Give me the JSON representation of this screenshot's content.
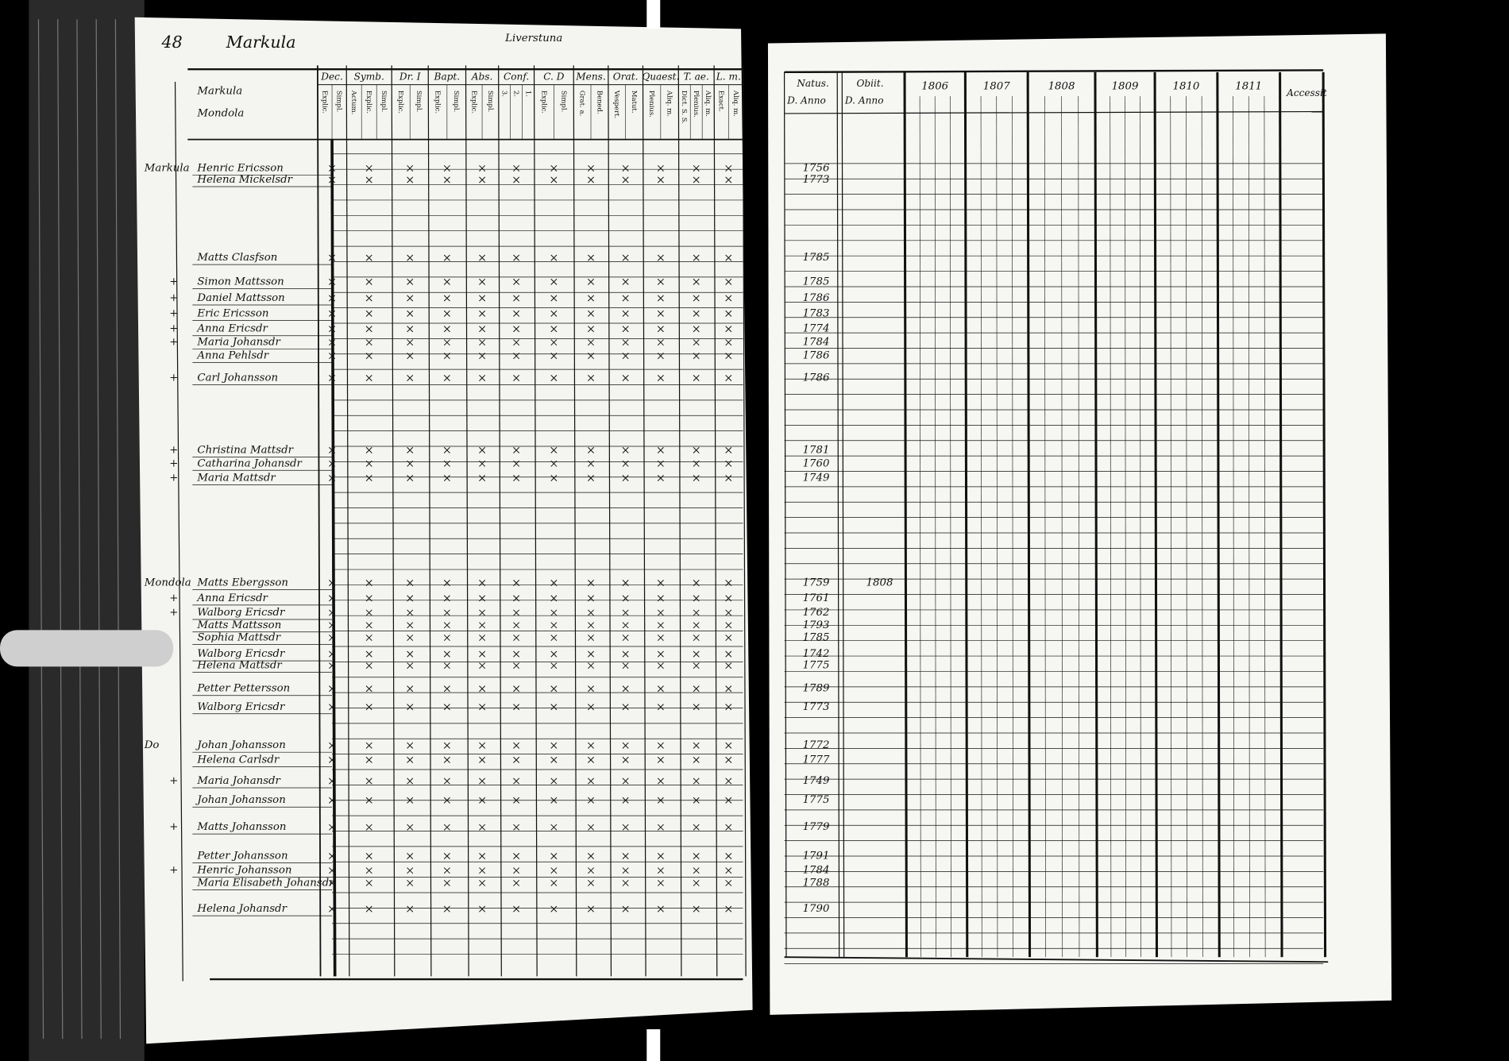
{
  "left_page": {
    "page_number": "48",
    "village": "Markula",
    "parish": "Liverstuna",
    "column_headers": [
      {
        "title": "Dec.",
        "sub": [
          "Explic.",
          "Simpl."
        ]
      },
      {
        "title": "Symb.",
        "sub": [
          "Actum.",
          "Explic.",
          "Simpl."
        ]
      },
      {
        "title": "Dr. I",
        "sub": [
          "Explic.",
          "Simpl."
        ]
      },
      {
        "title": "Bapt.",
        "sub": [
          "Explic.",
          "Simpl."
        ]
      },
      {
        "title": "Abs.",
        "sub": [
          "Explic.",
          "Simpl."
        ]
      },
      {
        "title": "Conf.",
        "sub": [
          "3.",
          "2.",
          "1."
        ]
      },
      {
        "title": "C. D",
        "sub": [
          "Explic.",
          "Simpl."
        ]
      },
      {
        "title": "Mens.",
        "sub": [
          "Grat. a.",
          "Bened."
        ]
      },
      {
        "title": "Orat.",
        "sub": [
          "Vespert.",
          "Matut."
        ]
      },
      {
        "title": "Quaest.",
        "sub": [
          "Plenius.",
          "Aliq. m."
        ]
      },
      {
        "title": "T. ae.",
        "sub": [
          "Dict. S. S.",
          "Plenius.",
          "Aliq. m."
        ]
      },
      {
        "title": "L. m.",
        "sub": [
          "Exact.",
          "Aliq. m."
        ]
      }
    ],
    "row_header": [
      "Markula",
      "Mondola"
    ]
  },
  "right_page": {
    "natus": "Natus.",
    "natus_sub": "D. Anno",
    "obiit": "Obiit.",
    "obiit_sub": "D. Anno",
    "years": [
      "1806",
      "1807",
      "1808",
      "1809",
      "1810",
      "1811"
    ],
    "accessit": "Accessit"
  },
  "rows": [
    {
      "margin": "Markula",
      "name": "Henric Ericsson",
      "born": "1756"
    },
    {
      "name": "Helena Mickelsdr",
      "born": "1773"
    },
    {
      "name": "Matts Clasfson",
      "born": "1785"
    },
    {
      "mark": "+",
      "name": "Simon Mattsson",
      "born": "1785"
    },
    {
      "mark": "+",
      "name": "Daniel Mattsson",
      "born": "1786"
    },
    {
      "mark": "+",
      "name": "Eric Ericsson",
      "born": "1783"
    },
    {
      "mark": "+",
      "name": "Anna Ericsdr",
      "born": "1774"
    },
    {
      "mark": "+",
      "name": "Maria Johansdr",
      "born": "1784"
    },
    {
      "name": "Anna Pehlsdr",
      "born": "1786"
    },
    {
      "mark": "+",
      "name": "Carl Johansson",
      "born": "1786"
    },
    {
      "mark": "+",
      "name": "Christina Mattsdr",
      "born": "1781"
    },
    {
      "mark": "+",
      "name": "Catharina Johansdr",
      "born": "1760"
    },
    {
      "mark": "+",
      "name": "Maria Mattsdr",
      "born": "1749"
    },
    {
      "margin": "Mondola",
      "name": "Matts Ebergsson",
      "born": "1759",
      "died": "1808"
    },
    {
      "mark": "+",
      "name": "Anna Ericsdr",
      "born": "1761"
    },
    {
      "mark": "+",
      "name": "Walborg Ericsdr",
      "born": "1762"
    },
    {
      "name": "Matts Mattsson",
      "born": "1793"
    },
    {
      "name": "Sophia Mattsdr",
      "born": "1785"
    },
    {
      "name": "Walborg Ericsdr",
      "born": "1742"
    },
    {
      "name": "Helena Mattsdr",
      "born": "1775"
    },
    {
      "name": "Petter Pettersson",
      "born": "1789"
    },
    {
      "name": "Walborg Ericsdr",
      "born": "1773"
    },
    {
      "margin": "Do",
      "name": "Johan Johansson",
      "born": "1772"
    },
    {
      "name": "Helena Carlsdr",
      "born": "1777"
    },
    {
      "mark": "+",
      "name": "Maria Johansdr",
      "born": "1749"
    },
    {
      "name": "Johan Johansson",
      "born": "1775"
    },
    {
      "mark": "+",
      "name": "Matts Johansson",
      "born": "1779"
    },
    {
      "name": "Petter Johansson",
      "born": "1791"
    },
    {
      "mark": "+",
      "name": "Henric Johansson",
      "born": "1784"
    },
    {
      "name": "Maria Elisabeth Johansdr",
      "born": "1788"
    },
    {
      "name": "Helena Johansdr",
      "born": "1790"
    }
  ]
}
